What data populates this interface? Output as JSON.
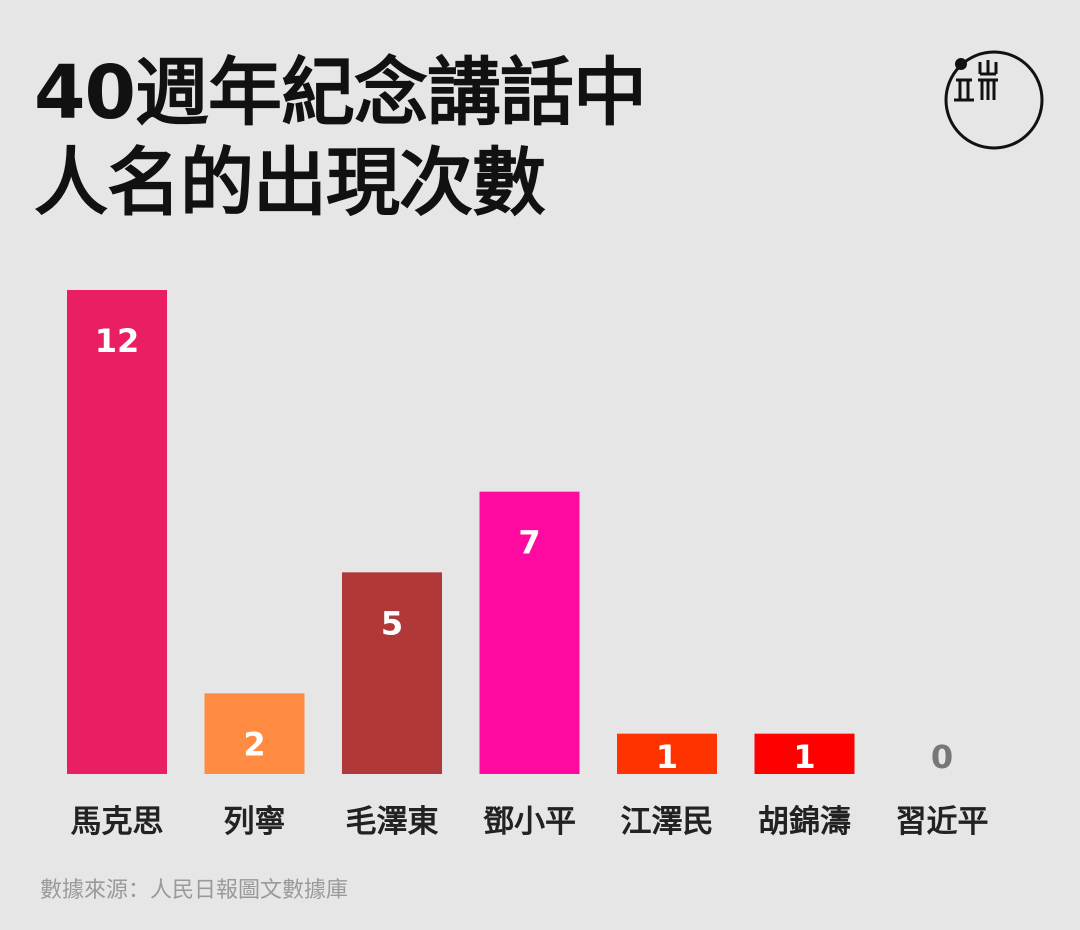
{
  "title": {
    "line1": "40週年紀念講話中",
    "line2": "人名的出現次數"
  },
  "source": "數據來源：人民日報圖文數據庫",
  "logo": {
    "icon": "initium-logo-icon"
  },
  "chart_data": {
    "type": "bar",
    "categories": [
      "馬克思",
      "列寧",
      "毛澤東",
      "鄧小平",
      "江澤民",
      "胡錦濤",
      "習近平"
    ],
    "values": [
      12,
      2,
      5,
      7,
      1,
      1,
      0
    ],
    "value_labels": [
      "12",
      "2",
      "5",
      "7",
      "1",
      "1",
      "0"
    ],
    "colors": [
      "#e91e63",
      "#ff8c42",
      "#b03838",
      "#ff0aa0",
      "#ff3300",
      "#ff0000",
      "#888888"
    ],
    "title": "40週年紀念講話中人名的出現次數",
    "xlabel": "",
    "ylabel": "",
    "ylim": [
      0,
      12
    ],
    "grid": false
  }
}
